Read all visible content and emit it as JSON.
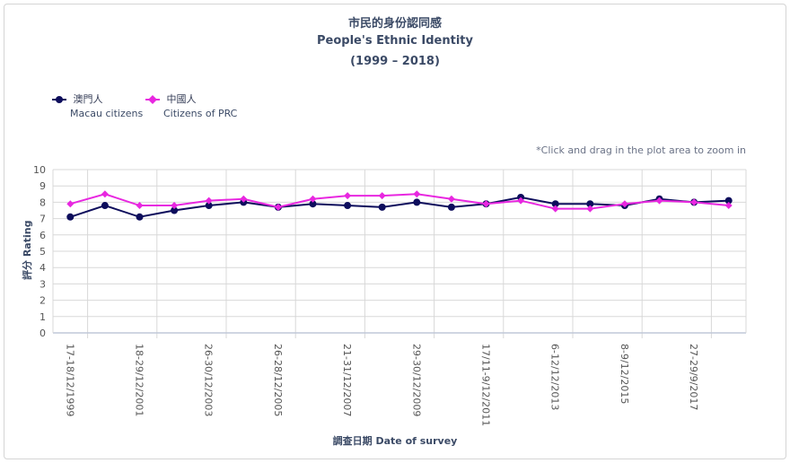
{
  "title": {
    "zh": "市民的身份認同感",
    "en": "People's Ethnic Identity",
    "range": "(1999 – 2018)"
  },
  "legend": [
    {
      "zh": "澳門人",
      "en": "Macau citizens",
      "color": "#0d0d5c"
    },
    {
      "zh": "中國人",
      "en": "Citizens of PRC",
      "color": "#e827e0"
    }
  ],
  "hint": "*Click and drag in the plot area to zoom in",
  "axes": {
    "xlabel": "調查日期 Date of survey",
    "ylabel": "評分 Rating"
  },
  "chart_data": {
    "type": "line",
    "title": "市民的身份認同感 People's Ethnic Identity (1999 – 2018)",
    "xlabel": "調查日期 Date of survey",
    "ylabel": "評分 Rating",
    "ylim": [
      0,
      10
    ],
    "yticks": [
      0,
      1,
      2,
      3,
      4,
      5,
      6,
      7,
      8,
      9,
      10
    ],
    "grid": true,
    "legend_position": "top-left",
    "x_tick_labels": [
      "17-18/12/1999",
      "18-29/12/2001",
      "26-30/12/2003",
      "26-28/12/2005",
      "21-31/12/2007",
      "29-30/12/2009",
      "17/11-9/12/2011",
      "6-12/12/2013",
      "8-9/12/2015",
      "27-29/9/2017"
    ],
    "x_label_indices": [
      0,
      2,
      4,
      6,
      8,
      10,
      12,
      14,
      16,
      18
    ],
    "point_count": 20,
    "series": [
      {
        "name": "澳門人 Macau citizens",
        "color": "#0d0d5c",
        "marker": "circle",
        "values": [
          7.1,
          7.8,
          7.1,
          7.5,
          7.8,
          8.0,
          7.7,
          7.9,
          7.8,
          7.7,
          8.0,
          7.7,
          7.9,
          8.3,
          7.9,
          7.9,
          7.8,
          8.2,
          8.0,
          8.1
        ]
      },
      {
        "name": "中國人 Citizens of PRC",
        "color": "#e827e0",
        "marker": "diamond",
        "values": [
          7.9,
          8.5,
          7.8,
          7.8,
          8.1,
          8.2,
          7.7,
          8.2,
          8.4,
          8.4,
          8.5,
          8.2,
          7.9,
          8.1,
          7.6,
          7.6,
          7.9,
          8.1,
          8.0,
          7.8
        ]
      }
    ]
  }
}
